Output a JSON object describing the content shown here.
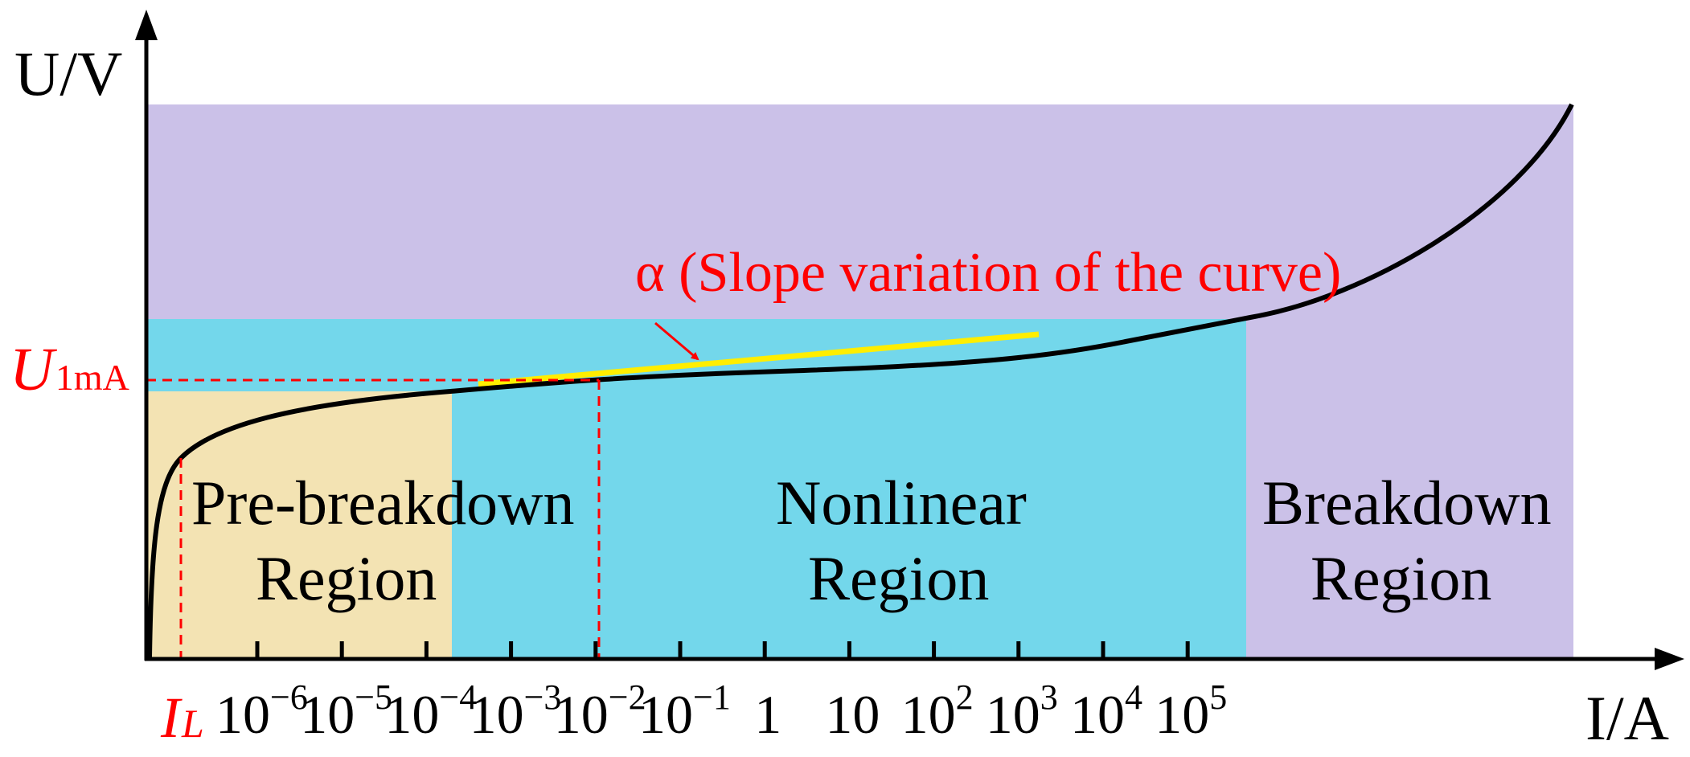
{
  "colors": {
    "pre_breakdown": "#f3e3b3",
    "nonlinear": "#73d7eb",
    "breakdown": "#cbc1e8",
    "curve": "#000000",
    "slope_line": "#ffee00",
    "annotation": "#ff0000"
  },
  "axes": {
    "y_label": "U/V",
    "x_label": "I/A",
    "x_scale": "log"
  },
  "ticks": [
    {
      "base": "10",
      "exp": "−6"
    },
    {
      "base": "10",
      "exp": "−5"
    },
    {
      "base": "10",
      "exp": "−4"
    },
    {
      "base": "10",
      "exp": "−3"
    },
    {
      "base": "10",
      "exp": "−2"
    },
    {
      "base": "10",
      "exp": "−1"
    },
    {
      "base": "1",
      "exp": ""
    },
    {
      "base": "10",
      "exp": ""
    },
    {
      "base": "10",
      "exp": "2"
    },
    {
      "base": "10",
      "exp": "3"
    },
    {
      "base": "10",
      "exp": "4"
    },
    {
      "base": "10",
      "exp": "5"
    }
  ],
  "markers": {
    "il_main": "I",
    "il_sub": "L",
    "u1ma_main": "U",
    "u1ma_sub": "1mA"
  },
  "regions": {
    "pre_breakdown": {
      "line1": "Pre-breakdown",
      "line2": "Region"
    },
    "nonlinear": {
      "line1": "Nonlinear",
      "line2": "Region"
    },
    "breakdown": {
      "line1": "Breakdown",
      "line2": "Region"
    }
  },
  "annotation": "α (Slope variation of the curve)"
}
